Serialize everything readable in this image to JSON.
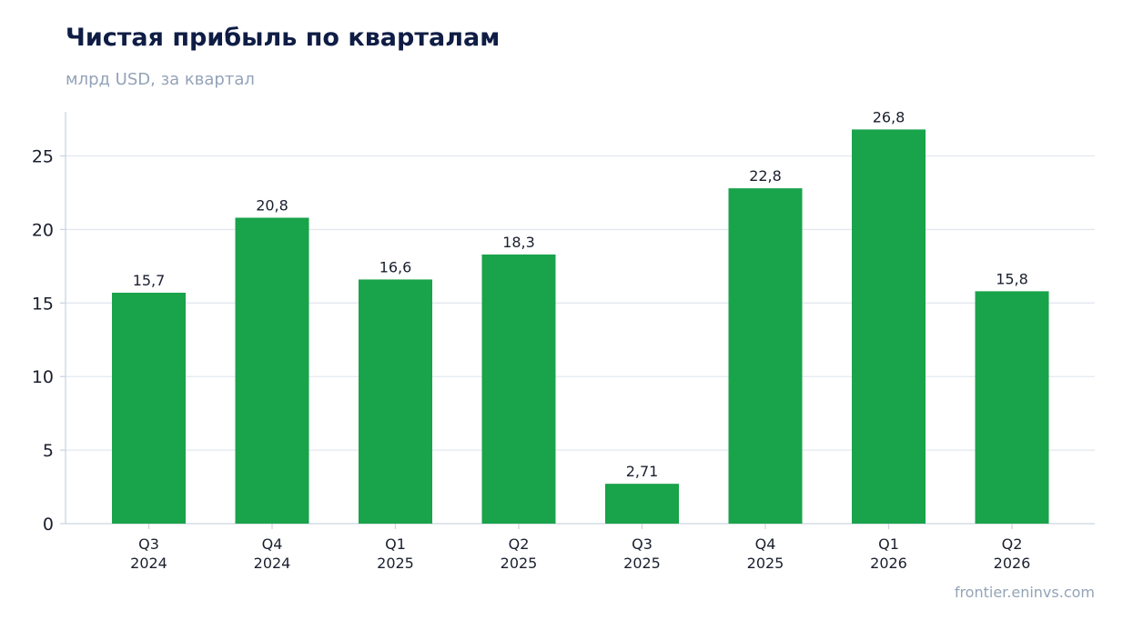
{
  "header": {
    "title": "Чистая прибыль по кварталам",
    "subtitle": "млрд USD, за квартал"
  },
  "footer": {
    "source": "frontier.eninvs.com"
  },
  "colors": {
    "bar": "#19a34a",
    "grid": "#e2e8f0",
    "axis": "#cbd5e1",
    "text": "#1a1f2e"
  },
  "chart_data": {
    "type": "bar",
    "categories": [
      [
        "Q3",
        "2024"
      ],
      [
        "Q4",
        "2024"
      ],
      [
        "Q1",
        "2025"
      ],
      [
        "Q2",
        "2025"
      ],
      [
        "Q3",
        "2025"
      ],
      [
        "Q4",
        "2025"
      ],
      [
        "Q1",
        "2026"
      ],
      [
        "Q2",
        "2026"
      ]
    ],
    "values": [
      15.7,
      20.8,
      16.6,
      18.3,
      2.71,
      22.8,
      26.8,
      15.8
    ],
    "value_labels": [
      "15,7",
      "20,8",
      "16,6",
      "18,3",
      "2,71",
      "22,8",
      "26,8",
      "15,8"
    ],
    "yticks": [
      0,
      5,
      10,
      15,
      20,
      25
    ],
    "ylim": [
      0,
      28
    ],
    "grid": true,
    "legend": "none"
  }
}
